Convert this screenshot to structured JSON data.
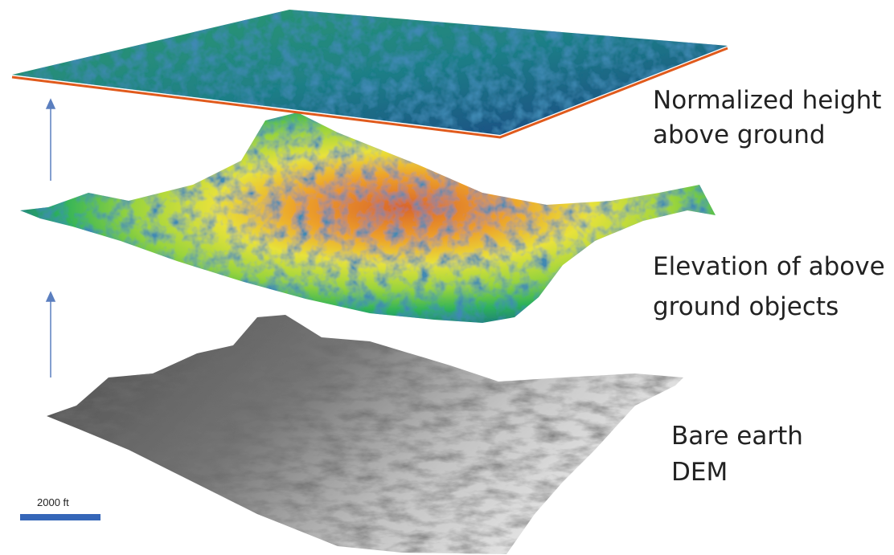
{
  "layers": [
    {
      "label": [
        "Normalized height",
        "above ground"
      ]
    },
    {
      "label": [
        "Elevation of above",
        "ground objects"
      ]
    },
    {
      "label": [
        "Bare earth",
        "DEM"
      ]
    }
  ],
  "scale_bar": {
    "label": "2000 ft"
  }
}
